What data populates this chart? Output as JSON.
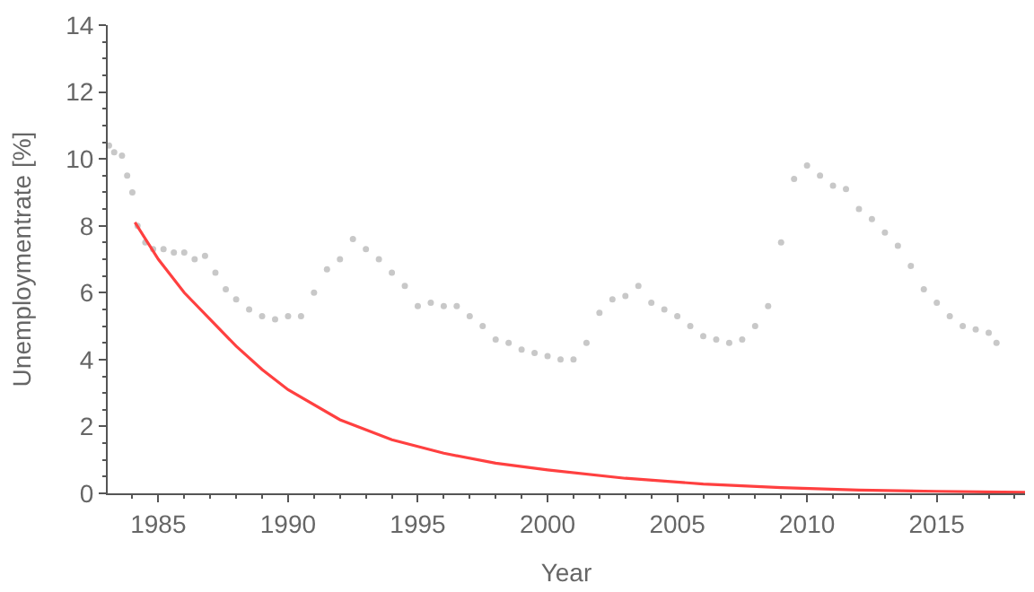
{
  "chart_data": {
    "type": "scatter",
    "xlabel": "Year",
    "ylabel": "Unemploymentrate [%]",
    "xlim": [
      1983.05,
      2018.4
    ],
    "ylim": [
      0,
      14
    ],
    "xticks": [
      1985,
      1990,
      1995,
      2000,
      2005,
      2010,
      2015
    ],
    "yticks": [
      0,
      2,
      4,
      6,
      8,
      10,
      12,
      14
    ],
    "grid": false,
    "marker": "circle",
    "series": [
      {
        "color": "#c8c8c8",
        "x": [
          1983.1,
          1983.3,
          1983.6,
          1983.8,
          1984.0,
          1984.2,
          1984.5,
          1984.8,
          1985.2,
          1985.6,
          1986.0,
          1986.4,
          1986.8,
          1987.2,
          1987.6,
          1988.0,
          1988.5,
          1989.0,
          1989.5,
          1990.0,
          1990.5,
          1991.0,
          1991.5,
          1992.0,
          1992.5,
          1993.0,
          1993.5,
          1994.0,
          1994.5,
          1995.0,
          1995.5,
          1996.0,
          1996.5,
          1997.0,
          1997.5,
          1998.0,
          1998.5,
          1999.0,
          1999.5,
          2000.0,
          2000.5,
          2001.0,
          2001.5,
          2002.0,
          2002.5,
          2003.0,
          2003.5,
          2004.0,
          2004.5,
          2005.0,
          2005.5,
          2006.0,
          2006.5,
          2007.0,
          2007.5,
          2008.0,
          2008.5,
          2009.0,
          2009.5,
          2010.0,
          2010.5,
          2011.0,
          2011.5,
          2012.0,
          2012.5,
          2013.0,
          2013.5,
          2014.0,
          2014.5,
          2015.0,
          2015.5,
          2016.0,
          2016.5,
          2017.0,
          2017.3
        ],
        "values": [
          10.4,
          10.2,
          10.1,
          9.5,
          9.0,
          8.0,
          7.5,
          7.3,
          7.3,
          7.2,
          7.2,
          7.0,
          7.1,
          6.6,
          6.1,
          5.8,
          5.5,
          5.3,
          5.2,
          5.3,
          5.3,
          6.0,
          6.7,
          7.0,
          7.6,
          7.3,
          7.0,
          6.6,
          6.2,
          5.6,
          5.7,
          5.6,
          5.6,
          5.3,
          5.0,
          4.6,
          4.5,
          4.3,
          4.2,
          4.1,
          4.0,
          4.0,
          4.5,
          5.4,
          5.8,
          5.9,
          6.2,
          5.7,
          5.5,
          5.3,
          5.0,
          4.7,
          4.6,
          4.5,
          4.6,
          5.0,
          5.6,
          7.5,
          9.4,
          9.8,
          9.5,
          9.2,
          9.1,
          8.5,
          8.2,
          7.8,
          7.4,
          6.8,
          6.1,
          5.7,
          5.3,
          5.0,
          4.9,
          4.8,
          4.5
        ]
      },
      {
        "type": "line",
        "color": "#ff4040",
        "marker": "none",
        "line_style": "solid",
        "x": [
          1984.1,
          1985,
          1986,
          1987,
          1988,
          1989,
          1990,
          1992,
          1994,
          1996,
          1998,
          2000,
          2003,
          2006,
          2009,
          2012,
          2015,
          2018.4
        ],
        "values": [
          8.1,
          7.0,
          6.0,
          5.2,
          4.4,
          3.7,
          3.1,
          2.2,
          1.6,
          1.2,
          0.9,
          0.7,
          0.45,
          0.28,
          0.17,
          0.1,
          0.06,
          0.03
        ]
      }
    ]
  }
}
